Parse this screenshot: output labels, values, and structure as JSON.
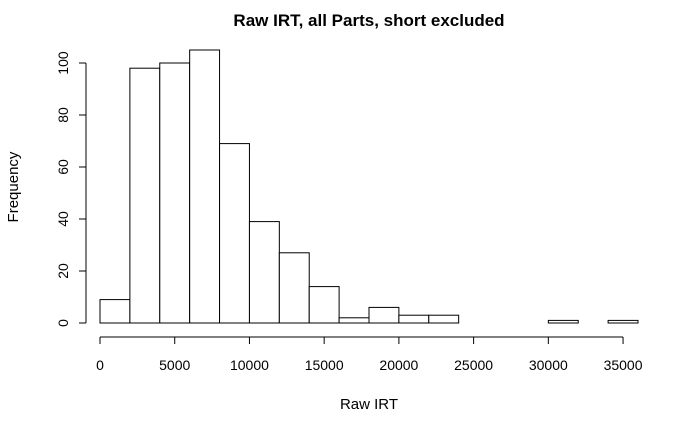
{
  "chart_data": {
    "type": "bar",
    "title": "Raw IRT, all Parts, short excluded",
    "xlabel": "Raw IRT",
    "ylabel": "Frequency",
    "bin_width": 2000,
    "bins": [
      {
        "start": 0,
        "end": 2000,
        "count": 9
      },
      {
        "start": 2000,
        "end": 4000,
        "count": 98
      },
      {
        "start": 4000,
        "end": 6000,
        "count": 100
      },
      {
        "start": 6000,
        "end": 8000,
        "count": 105
      },
      {
        "start": 8000,
        "end": 10000,
        "count": 69
      },
      {
        "start": 10000,
        "end": 12000,
        "count": 39
      },
      {
        "start": 12000,
        "end": 14000,
        "count": 27
      },
      {
        "start": 14000,
        "end": 16000,
        "count": 14
      },
      {
        "start": 16000,
        "end": 18000,
        "count": 2
      },
      {
        "start": 18000,
        "end": 20000,
        "count": 6
      },
      {
        "start": 20000,
        "end": 22000,
        "count": 3
      },
      {
        "start": 22000,
        "end": 24000,
        "count": 3
      },
      {
        "start": 24000,
        "end": 26000,
        "count": 0
      },
      {
        "start": 26000,
        "end": 28000,
        "count": 0
      },
      {
        "start": 28000,
        "end": 30000,
        "count": 0
      },
      {
        "start": 30000,
        "end": 32000,
        "count": 1
      },
      {
        "start": 32000,
        "end": 34000,
        "count": 0
      },
      {
        "start": 34000,
        "end": 36000,
        "count": 1
      }
    ],
    "xlim": [
      0,
      36000
    ],
    "ylim": [
      0,
      105
    ],
    "x_ticks": [
      0,
      5000,
      10000,
      15000,
      20000,
      25000,
      30000,
      35000
    ],
    "y_ticks": [
      0,
      20,
      40,
      60,
      80,
      100
    ],
    "grid": false,
    "legend": "none"
  }
}
